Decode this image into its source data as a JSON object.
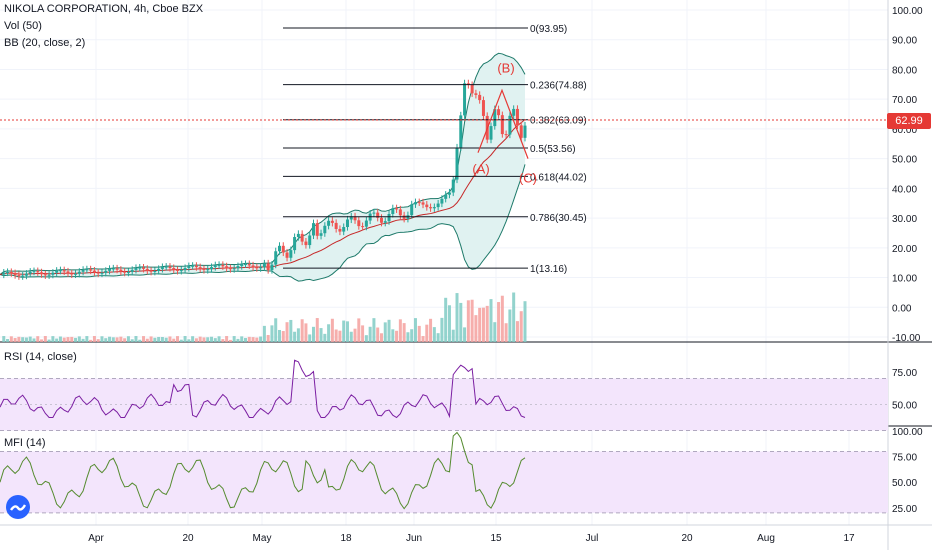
{
  "header": {
    "title": "NIKOLA CORPORATION, 4h, Cboe BZX",
    "vol_label": "Vol (50)",
    "bb_label": "BB (20, close, 2)",
    "rsi_label": "RSI (14, close)",
    "mfi_label": "MFI (14)"
  },
  "colors": {
    "candle_up": "#26a69a",
    "candle_down": "#ef5350",
    "bb_band": "#1e7a6a",
    "bb_basis": "#c62828",
    "bb_fill": "#e0f2f1",
    "rsi_line": "#7b1fa2",
    "mfi_line": "#558b2f",
    "osc_band": "#f3e5fc",
    "annotation": "#e53935"
  },
  "price_tag": "62.99",
  "chart_data": {
    "type": "line",
    "x_ticks": [
      "Apr",
      "20",
      "May",
      "18",
      "Jun",
      "15",
      "Jul",
      "20",
      "Aug",
      "17"
    ],
    "price_axis": {
      "ticks": [
        "100.00",
        "90.00",
        "80.00",
        "70.00",
        "60.00",
        "50.00",
        "40.00",
        "30.00",
        "20.00",
        "10.00",
        "0.00",
        "-10.00"
      ],
      "ylim": [
        -10,
        100
      ]
    },
    "rsi_axis": {
      "ticks": [
        "75.00",
        "50.00"
      ],
      "ylim": [
        35,
        95
      ]
    },
    "mfi_axis": {
      "ticks": [
        "100.00",
        "75.00",
        "50.00",
        "25.00"
      ],
      "ylim": [
        15,
        102
      ]
    },
    "fib_levels": [
      {
        "label": "0(93.95)",
        "value": 93.95
      },
      {
        "label": "0.236(74.88)",
        "value": 74.88
      },
      {
        "label": "0.382(63.09)",
        "value": 63.09
      },
      {
        "label": "0.5(53.56)",
        "value": 53.56
      },
      {
        "label": "0.618(44.02)",
        "value": 44.02
      },
      {
        "label": "0.786(30.45)",
        "value": 30.45
      },
      {
        "label": "1(13.16)",
        "value": 13.16
      }
    ],
    "wave_labels": [
      {
        "text": "(A)",
        "value": 45
      },
      {
        "text": "(B)",
        "value": 79
      },
      {
        "text": "(C)",
        "value": 42
      }
    ],
    "current_price": 62.99
  }
}
